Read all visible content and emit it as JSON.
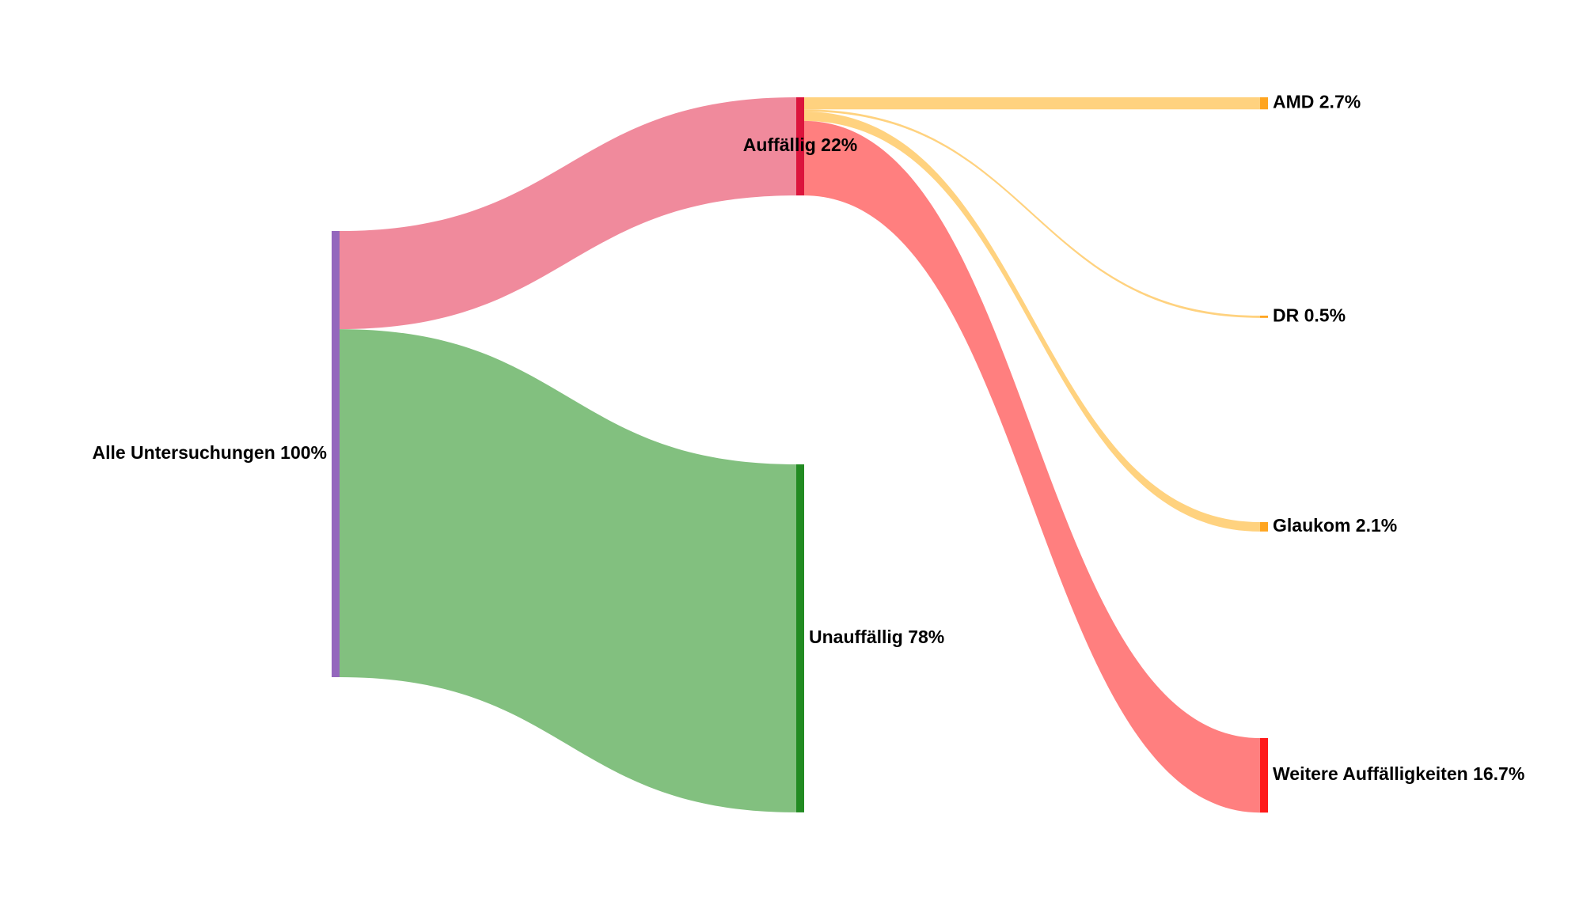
{
  "chart_data": {
    "type": "sankey",
    "nodes": [
      {
        "label": "Alle Untersuchungen 100%",
        "color": "#9467bd"
      },
      {
        "label": "Auffällig 22%",
        "color": "#dc143c"
      },
      {
        "label": "Unauffällig 78%",
        "color": "#228b22"
      },
      {
        "label": "AMD 2.7%",
        "color": "#ffa520"
      },
      {
        "label": "DR 0.5%",
        "color": "#ffa520"
      },
      {
        "label": "Glaukom 2.1%",
        "color": "#ffa520"
      },
      {
        "label": "Weitere Auffälligkeiten 16.7%",
        "color": "#ff1a1a"
      }
    ],
    "links": [
      {
        "source": 0,
        "target": 1,
        "value": 22,
        "color": "#f08a9c"
      },
      {
        "source": 0,
        "target": 2,
        "value": 78,
        "color": "#82c07f"
      },
      {
        "source": 1,
        "target": 3,
        "value": 2.7,
        "color": "#ffd27f"
      },
      {
        "source": 1,
        "target": 4,
        "value": 0.5,
        "color": "#ffd27f"
      },
      {
        "source": 1,
        "target": 5,
        "value": 2.1,
        "color": "#ffd27f"
      },
      {
        "source": 1,
        "target": 6,
        "value": 16.7,
        "color": "#ff7f7f"
      }
    ]
  }
}
